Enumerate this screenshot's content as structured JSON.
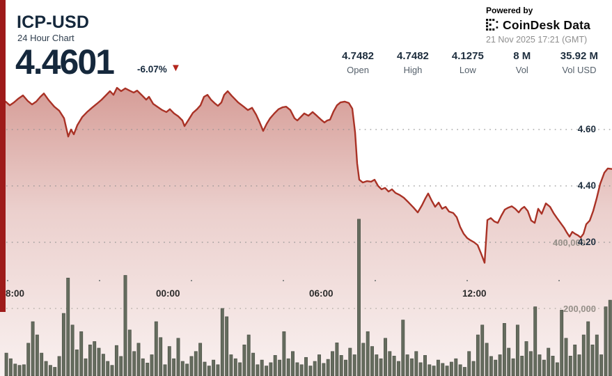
{
  "header": {
    "symbol": "ICP-USD",
    "subtitle": "24 Hour Chart",
    "price": "4.4601",
    "change_pct": "-6.07%",
    "direction_arrow": "▼"
  },
  "powered_by": {
    "label": "Powered by",
    "brand": "CoinDesk Data",
    "timestamp": "21 Nov 2025 17:21 (GMT)"
  },
  "stats": [
    {
      "value": "4.7482",
      "label": "Open"
    },
    {
      "value": "4.7482",
      "label": "High"
    },
    {
      "value": "4.1275",
      "label": "Low"
    },
    {
      "value": "8 M",
      "label": "Vol"
    },
    {
      "value": "35.92 M",
      "label": "Vol USD"
    }
  ],
  "colors": {
    "navy": "#15283c",
    "accent_red": "#a93226",
    "stripe_red": "#9e1b1a",
    "arrow_red": "#b3261c",
    "volume_bar": "#656c5e",
    "volume_bar_edge": "#4b5146",
    "grid_dot": "#8f8f8f",
    "volume_label_gray": "#969089"
  },
  "chart_data": {
    "type": "area",
    "title": "ICP-USD 24 Hour Chart",
    "price_axis": {
      "side": "right",
      "ticks": [
        "4.60",
        "4.40",
        "4.20"
      ],
      "tick_values": [
        4.6,
        4.4,
        4.2
      ],
      "range": [
        4.1,
        4.78
      ]
    },
    "volume_axis": {
      "side": "right",
      "ticks": [
        "400,000",
        "200,000"
      ],
      "tick_values": [
        400000,
        200000
      ]
    },
    "time_axis": {
      "ticks": [
        "8:00",
        "00:00",
        "06:00",
        "12:00"
      ]
    },
    "open": 4.7482,
    "high": 4.7482,
    "low": 4.1275,
    "last": 4.4601,
    "price_series": {
      "name": "ICP-USD",
      "points": [
        [
          0,
          4.689
        ],
        [
          8,
          4.699
        ],
        [
          14,
          4.686
        ],
        [
          20,
          4.696
        ],
        [
          26,
          4.709
        ],
        [
          33,
          4.721
        ],
        [
          40,
          4.701
        ],
        [
          46,
          4.689
        ],
        [
          52,
          4.699
        ],
        [
          58,
          4.716
        ],
        [
          63,
          4.728
        ],
        [
          70,
          4.704
        ],
        [
          78,
          4.681
        ],
        [
          85,
          4.667
        ],
        [
          92,
          4.64
        ],
        [
          98,
          4.575
        ],
        [
          102,
          4.6
        ],
        [
          106,
          4.583
        ],
        [
          111,
          4.615
        ],
        [
          118,
          4.644
        ],
        [
          125,
          4.662
        ],
        [
          132,
          4.677
        ],
        [
          139,
          4.691
        ],
        [
          146,
          4.706
        ],
        [
          152,
          4.721
        ],
        [
          158,
          4.736
        ],
        [
          163,
          4.723
        ],
        [
          168,
          4.748
        ],
        [
          174,
          4.736
        ],
        [
          180,
          4.746
        ],
        [
          186,
          4.738
        ],
        [
          192,
          4.731
        ],
        [
          197,
          4.738
        ],
        [
          204,
          4.721
        ],
        [
          210,
          4.706
        ],
        [
          214,
          4.716
        ],
        [
          220,
          4.691
        ],
        [
          227,
          4.679
        ],
        [
          233,
          4.669
        ],
        [
          239,
          4.662
        ],
        [
          244,
          4.672
        ],
        [
          250,
          4.657
        ],
        [
          256,
          4.647
        ],
        [
          262,
          4.632
        ],
        [
          265,
          4.612
        ],
        [
          271,
          4.635
        ],
        [
          277,
          4.659
        ],
        [
          283,
          4.672
        ],
        [
          288,
          4.686
        ],
        [
          293,
          4.716
        ],
        [
          298,
          4.723
        ],
        [
          303,
          4.706
        ],
        [
          308,
          4.694
        ],
        [
          313,
          4.684
        ],
        [
          318,
          4.696
        ],
        [
          322,
          4.723
        ],
        [
          327,
          4.736
        ],
        [
          333,
          4.719
        ],
        [
          335,
          4.714
        ],
        [
          342,
          4.696
        ],
        [
          350,
          4.681
        ],
        [
          356,
          4.669
        ],
        [
          362,
          4.677
        ],
        [
          368,
          4.652
        ],
        [
          373,
          4.625
        ],
        [
          378,
          4.595
        ],
        [
          383,
          4.62
        ],
        [
          388,
          4.64
        ],
        [
          394,
          4.657
        ],
        [
          400,
          4.672
        ],
        [
          406,
          4.679
        ],
        [
          411,
          4.681
        ],
        [
          417,
          4.669
        ],
        [
          423,
          4.64
        ],
        [
          427,
          4.632
        ],
        [
          431,
          4.642
        ],
        [
          437,
          4.657
        ],
        [
          443,
          4.649
        ],
        [
          449,
          4.662
        ],
        [
          455,
          4.649
        ],
        [
          461,
          4.635
        ],
        [
          466,
          4.625
        ],
        [
          470,
          4.632
        ],
        [
          474,
          4.635
        ],
        [
          479,
          4.664
        ],
        [
          484,
          4.686
        ],
        [
          489,
          4.696
        ],
        [
          495,
          4.699
        ],
        [
          501,
          4.694
        ],
        [
          506,
          4.674
        ],
        [
          510,
          4.59
        ],
        [
          513,
          4.479
        ],
        [
          516,
          4.422
        ],
        [
          521,
          4.412
        ],
        [
          527,
          4.417
        ],
        [
          533,
          4.415
        ],
        [
          538,
          4.422
        ],
        [
          543,
          4.4
        ],
        [
          548,
          4.388
        ],
        [
          553,
          4.393
        ],
        [
          558,
          4.38
        ],
        [
          563,
          4.388
        ],
        [
          568,
          4.375
        ],
        [
          574,
          4.368
        ],
        [
          580,
          4.358
        ],
        [
          587,
          4.341
        ],
        [
          594,
          4.323
        ],
        [
          600,
          4.306
        ],
        [
          606,
          4.331
        ],
        [
          611,
          4.356
        ],
        [
          615,
          4.373
        ],
        [
          620,
          4.348
        ],
        [
          625,
          4.326
        ],
        [
          630,
          4.341
        ],
        [
          635,
          4.319
        ],
        [
          640,
          4.326
        ],
        [
          645,
          4.309
        ],
        [
          651,
          4.304
        ],
        [
          656,
          4.289
        ],
        [
          661,
          4.254
        ],
        [
          666,
          4.23
        ],
        [
          671,
          4.215
        ],
        [
          676,
          4.207
        ],
        [
          681,
          4.2
        ],
        [
          686,
          4.19
        ],
        [
          691,
          4.16
        ],
        [
          696,
          4.1275
        ],
        [
          700,
          4.279
        ],
        [
          705,
          4.286
        ],
        [
          710,
          4.274
        ],
        [
          715,
          4.269
        ],
        [
          720,
          4.294
        ],
        [
          725,
          4.316
        ],
        [
          730,
          4.323
        ],
        [
          735,
          4.328
        ],
        [
          740,
          4.319
        ],
        [
          745,
          4.306
        ],
        [
          749,
          4.319
        ],
        [
          753,
          4.326
        ],
        [
          758,
          4.311
        ],
        [
          763,
          4.277
        ],
        [
          768,
          4.269
        ],
        [
          773,
          4.319
        ],
        [
          778,
          4.301
        ],
        [
          784,
          4.338
        ],
        [
          790,
          4.326
        ],
        [
          795,
          4.304
        ],
        [
          800,
          4.286
        ],
        [
          805,
          4.269
        ],
        [
          810,
          4.252
        ],
        [
          814,
          4.235
        ],
        [
          818,
          4.22
        ],
        [
          822,
          4.237
        ],
        [
          826,
          4.23
        ],
        [
          830,
          4.225
        ],
        [
          834,
          4.217
        ],
        [
          838,
          4.23
        ],
        [
          842,
          4.264
        ],
        [
          847,
          4.277
        ],
        [
          852,
          4.311
        ],
        [
          857,
          4.356
        ],
        [
          862,
          4.407
        ],
        [
          868,
          4.447
        ],
        [
          873,
          4.462
        ],
        [
          879,
          4.4601
        ]
      ]
    },
    "volume_series": {
      "name": "Volume",
      "bars": [
        65000,
        48000,
        32000,
        28000,
        30000,
        95000,
        160000,
        120000,
        65000,
        40000,
        28000,
        22000,
        55000,
        185000,
        292000,
        150000,
        75000,
        130000,
        48000,
        90000,
        100000,
        80000,
        62000,
        40000,
        28000,
        88000,
        55000,
        300000,
        135000,
        70000,
        95000,
        48000,
        35000,
        60000,
        160000,
        112000,
        30000,
        85000,
        48000,
        110000,
        40000,
        32000,
        55000,
        70000,
        95000,
        38000,
        26000,
        44000,
        30000,
        200000,
        175000,
        60000,
        48000,
        36000,
        90000,
        120000,
        65000,
        30000,
        44000,
        26000,
        36000,
        58000,
        44000,
        130000,
        48000,
        70000,
        36000,
        30000,
        52000,
        26000,
        40000,
        60000,
        34000,
        46000,
        70000,
        96000,
        58000,
        44000,
        80000,
        60000,
        470000,
        95000,
        130000,
        85000,
        60000,
        48000,
        110000,
        70000,
        56000,
        40000,
        165000,
        60000,
        48000,
        70000,
        36000,
        58000,
        30000,
        26000,
        44000,
        34000,
        26000,
        38000,
        48000,
        30000,
        22000,
        70000,
        40000,
        120000,
        150000,
        95000,
        55000,
        44000,
        60000,
        155000,
        80000,
        48000,
        150000,
        56000,
        100000,
        70000,
        205000,
        60000,
        44000,
        80000,
        56000,
        36000,
        195000,
        110000,
        56000,
        90000,
        60000,
        120000,
        160000,
        90000,
        120000,
        60000,
        205000,
        225000
      ]
    }
  }
}
